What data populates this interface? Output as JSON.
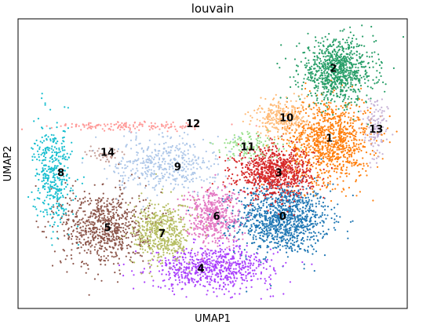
{
  "chart_data": {
    "type": "scatter",
    "title": "louvain",
    "xlabel": "UMAP1",
    "ylabel": "UMAP2",
    "xlim": [
      0,
      100
    ],
    "ylim": [
      0,
      100
    ],
    "grid": false,
    "legend": "on-data",
    "axes_ticks": false,
    "clusters": [
      {
        "label": "0",
        "color": "#1f77b4",
        "center": [
          68,
          31
        ],
        "spread": [
          10,
          10
        ],
        "points": 1100
      },
      {
        "label": "1",
        "color": "#ff7f0e",
        "center": [
          80,
          58
        ],
        "spread": [
          9,
          12
        ],
        "points": 1000
      },
      {
        "label": "2",
        "color": "#279e68",
        "center": [
          82,
          82
        ],
        "spread": [
          8,
          9
        ],
        "points": 850
      },
      {
        "label": "3",
        "color": "#d62728",
        "center": [
          66,
          47
        ],
        "spread": [
          8,
          7
        ],
        "points": 850
      },
      {
        "label": "4",
        "color": "#aa40fc",
        "center": [
          50,
          14
        ],
        "spread": [
          13,
          6
        ],
        "points": 700
      },
      {
        "label": "5",
        "color": "#8c564b",
        "center": [
          22,
          28
        ],
        "spread": [
          9,
          11
        ],
        "points": 750
      },
      {
        "label": "6",
        "color": "#e377c2",
        "center": [
          50,
          32
        ],
        "spread": [
          6,
          8
        ],
        "points": 500
      },
      {
        "label": "7",
        "color": "#b5bd61",
        "center": [
          37,
          26
        ],
        "spread": [
          6,
          9
        ],
        "points": 500
      },
      {
        "label": "8",
        "color": "#17becf",
        "center": [
          9,
          46
        ],
        "spread": [
          4,
          14
        ],
        "points": 400
      },
      {
        "label": "9",
        "color": "#aec7e8",
        "center": [
          38,
          50
        ],
        "spread": [
          11,
          8
        ],
        "points": 450
      },
      {
        "label": "10",
        "color": "#ffbb78",
        "center": [
          68,
          66
        ],
        "spread": [
          6,
          5
        ],
        "points": 300
      },
      {
        "label": "11",
        "color": "#98df8a",
        "center": [
          60,
          56
        ],
        "spread": [
          8,
          4
        ],
        "points": 120
      },
      {
        "label": "12",
        "color": "#ff9896",
        "center": [
          30,
          63
        ],
        "spread": [
          17,
          1.2
        ],
        "points": 150
      },
      {
        "label": "13",
        "color": "#c5b0d5",
        "center": [
          92,
          62
        ],
        "spread": [
          2.5,
          9
        ],
        "points": 120
      },
      {
        "label": "14",
        "color": "#c49c94",
        "center": [
          22,
          53
        ],
        "spread": [
          4,
          3
        ],
        "points": 40
      }
    ],
    "label_positions": [
      {
        "label": "0",
        "x": 68,
        "y": 32
      },
      {
        "label": "1",
        "x": 80,
        "y": 59
      },
      {
        "label": "2",
        "x": 81,
        "y": 83
      },
      {
        "label": "3",
        "x": 67,
        "y": 47
      },
      {
        "label": "4",
        "x": 47,
        "y": 14
      },
      {
        "label": "5",
        "x": 23,
        "y": 28
      },
      {
        "label": "6",
        "x": 51,
        "y": 32
      },
      {
        "label": "7",
        "x": 37,
        "y": 26
      },
      {
        "label": "8",
        "x": 11,
        "y": 47
      },
      {
        "label": "9",
        "x": 41,
        "y": 49
      },
      {
        "label": "10",
        "x": 69,
        "y": 66
      },
      {
        "label": "11",
        "x": 59,
        "y": 56
      },
      {
        "label": "12",
        "x": 45,
        "y": 64
      },
      {
        "label": "13",
        "x": 92,
        "y": 62
      },
      {
        "label": "14",
        "x": 23,
        "y": 54
      }
    ]
  }
}
